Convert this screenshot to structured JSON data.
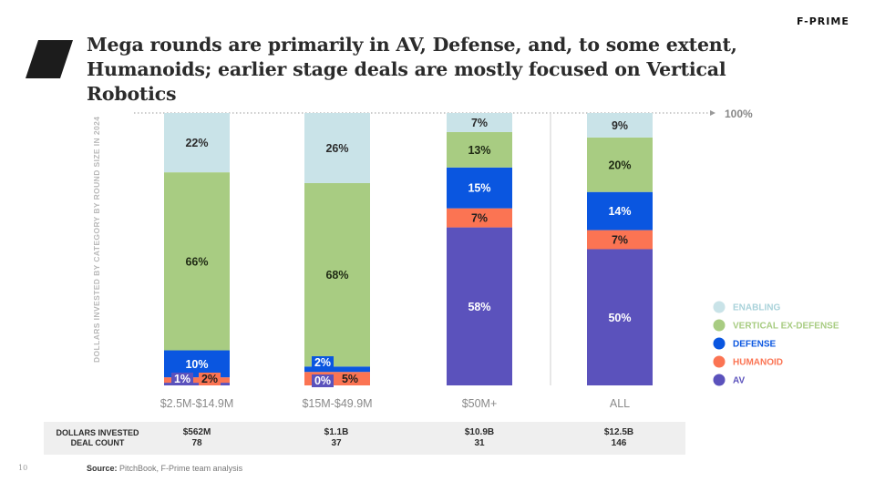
{
  "page": {
    "title": "Mega rounds are primarily in AV, Defense, and, to some extent, Humanoids; earlier stage deals are mostly focused on Vertical Robotics",
    "brand": "F-PRIME",
    "page_number": "10",
    "source_label": "Source:",
    "source_text": "PitchBook, F-Prime team analysis",
    "reference_label": "100%"
  },
  "summary": {
    "row_labels": [
      "DOLLARS INVESTED",
      "DEAL COUNT"
    ],
    "columns": [
      {
        "dollars": "$562M",
        "deals": "78"
      },
      {
        "dollars": "$1.1B",
        "deals": "37"
      },
      {
        "dollars": "$10.9B",
        "deals": "31"
      },
      {
        "dollars": "$12.5B",
        "deals": "146"
      }
    ]
  },
  "colors": {
    "AV": "#5b52bc",
    "HUMANOID": "#fb7453",
    "DEFENSE": "#0a56e0",
    "VERTICAL EX-DEFENSE": "#a8cc82",
    "ENABLING": "#c9e3e8"
  },
  "chart_data": {
    "type": "bar",
    "stacked": true,
    "ylabel": "DOLLARS INVESTED BY CATEGORY BY ROUND SIZE IN 2024",
    "ylim": [
      0,
      100
    ],
    "categories": [
      "$2.5M-$14.9M",
      "$15M-$49.9M",
      "$50M+",
      "ALL"
    ],
    "series": [
      {
        "name": "AV",
        "values": [
          1,
          0,
          58,
          50
        ],
        "labels": [
          "1%",
          "0%",
          "58%",
          "50%"
        ]
      },
      {
        "name": "HUMANOID",
        "values": [
          2,
          5,
          7,
          7
        ],
        "labels": [
          "2%",
          "5%",
          "7%",
          "7%"
        ]
      },
      {
        "name": "DEFENSE",
        "values": [
          10,
          2,
          15,
          14
        ],
        "labels": [
          "10%",
          "2%",
          "15%",
          "14%"
        ]
      },
      {
        "name": "VERTICAL EX-DEFENSE",
        "values": [
          66,
          68,
          13,
          20
        ],
        "labels": [
          "66%",
          "68%",
          "13%",
          "20%"
        ]
      },
      {
        "name": "ENABLING",
        "values": [
          22,
          26,
          7,
          9
        ],
        "labels": [
          "22%",
          "26%",
          "7%",
          "9%"
        ]
      }
    ],
    "legend": [
      "ENABLING",
      "VERTICAL EX-DEFENSE",
      "DEFENSE",
      "HUMANOID",
      "AV"
    ],
    "legend_position": "right",
    "grid": false
  }
}
